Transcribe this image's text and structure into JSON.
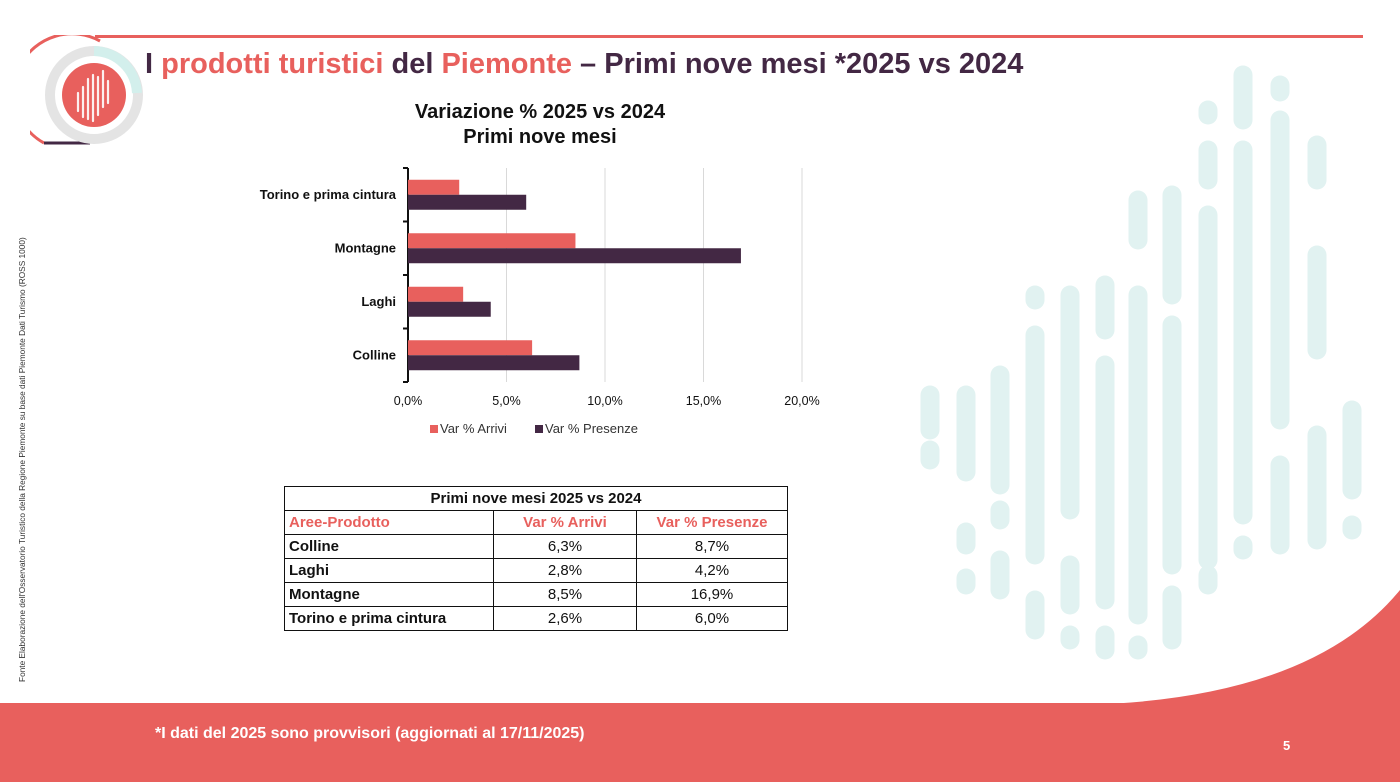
{
  "header": {
    "title_part1": "I ",
    "title_accent1": "prodotti turistici",
    "title_part2": " del ",
    "title_accent2": "Piemonte",
    "title_part3": " – Primi nove mesi *2025 vs 2024"
  },
  "side_note": "Fonte Elaborazione dell'Osservatorio Turistico della Regione Piemonte su base dati Piemonte Dati Turismo (ROSS 1000)",
  "chart_data": {
    "type": "bar",
    "orientation": "horizontal",
    "title_line1": "Variazione % 2025 vs 2024",
    "title_line2": "Primi nove mesi",
    "categories": [
      "Torino e prima cintura",
      "Montagne",
      "Laghi",
      "Colline"
    ],
    "series": [
      {
        "name": "Var % Arrivi",
        "values": [
          2.6,
          8.5,
          2.8,
          6.3
        ],
        "color": "#e8605d"
      },
      {
        "name": "Var % Presenze",
        "values": [
          6.0,
          16.9,
          4.2,
          8.7
        ],
        "color": "#432844"
      }
    ],
    "xlim": [
      0,
      20
    ],
    "xticks": [
      0,
      5,
      10,
      15,
      20
    ],
    "xtick_labels": [
      "0,0%",
      "5,0%",
      "10,0%",
      "15,0%",
      "20,0%"
    ],
    "grid": true,
    "legend": "bottom"
  },
  "table": {
    "caption": "Primi nove mesi 2025 vs 2024",
    "headers": [
      "Aree-Prodotto",
      "Var % Arrivi",
      "Var % Presenze"
    ],
    "rows": [
      [
        "Colline",
        "6,3%",
        "8,7%"
      ],
      [
        "Laghi",
        "2,8%",
        "4,2%"
      ],
      [
        "Montagne",
        "8,5%",
        "16,9%"
      ],
      [
        "Torino e prima cintura",
        "2,6%",
        "6,0%"
      ]
    ]
  },
  "footer": {
    "note": "*I dati del 2025 sono provvisori (aggiornati al 17/11/2025)",
    "page_number": "5"
  },
  "colors": {
    "accent": "#e8605d",
    "dark": "#432844",
    "decoration": "#e1f2f1"
  }
}
